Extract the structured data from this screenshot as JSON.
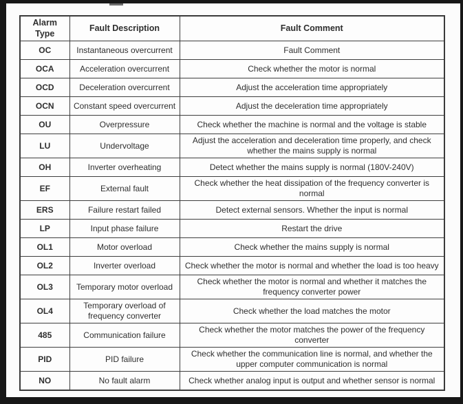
{
  "colors": {
    "frame": "#171717",
    "table_border": "#3d3d3d",
    "text": "#2e2e2e",
    "background": "#fcfcfc"
  },
  "table": {
    "headers": [
      "Alarm Type",
      "Fault Description",
      "Fault Comment"
    ],
    "rows": [
      {
        "type": "OC",
        "desc": "Instantaneous overcurrent",
        "comment": "Fault Comment"
      },
      {
        "type": "OCA",
        "desc": "Acceleration overcurrent",
        "comment": "Check whether the motor is normal"
      },
      {
        "type": "OCD",
        "desc": "Deceleration overcurrent",
        "comment": "Adjust the acceleration time appropriately"
      },
      {
        "type": "OCN",
        "desc": "Constant speed overcurrent",
        "comment": "Adjust the deceleration time appropriately"
      },
      {
        "type": "OU",
        "desc": "Overpressure",
        "comment": "Check whether the machine is normal and the voltage is stable"
      },
      {
        "type": "LU",
        "desc": "Undervoltage",
        "comment": "Adjust the acceleration and deceleration time properly, and check whether the mains supply is normal"
      },
      {
        "type": "OH",
        "desc": "Inverter overheating",
        "comment": "Detect whether the mains supply is normal (180V-240V)"
      },
      {
        "type": "EF",
        "desc": "External fault",
        "comment": "Check whether the heat dissipation of the frequency converter is normal"
      },
      {
        "type": "ERS",
        "desc": "Failure restart failed",
        "comment": "Detect external sensors. Whether the input is normal"
      },
      {
        "type": "LP",
        "desc": "Input phase failure",
        "comment": "Restart the drive"
      },
      {
        "type": "OL1",
        "desc": "Motor overload",
        "comment": "Check whether the mains supply is normal"
      },
      {
        "type": "OL2",
        "desc": "Inverter overload",
        "comment": "Check whether the motor is normal and whether the load is too heavy"
      },
      {
        "type": "OL3",
        "desc": "Temporary motor overload",
        "comment": "Check whether the motor is normal and whether it matches the frequency converter power"
      },
      {
        "type": "OL4",
        "desc": "Temporary overload of frequency converter",
        "comment": "Check whether the load matches the motor"
      },
      {
        "type": "485",
        "desc": "Communication failure",
        "comment": "Check whether the motor matches the power of the frequency converter"
      },
      {
        "type": "PID",
        "desc": "PID failure",
        "comment": "Check whether the communication line is normal, and whether the upper computer communication is normal"
      },
      {
        "type": "NO",
        "desc": "No fault alarm",
        "comment": "Check whether analog input is output and whether sensor is normal"
      }
    ]
  }
}
